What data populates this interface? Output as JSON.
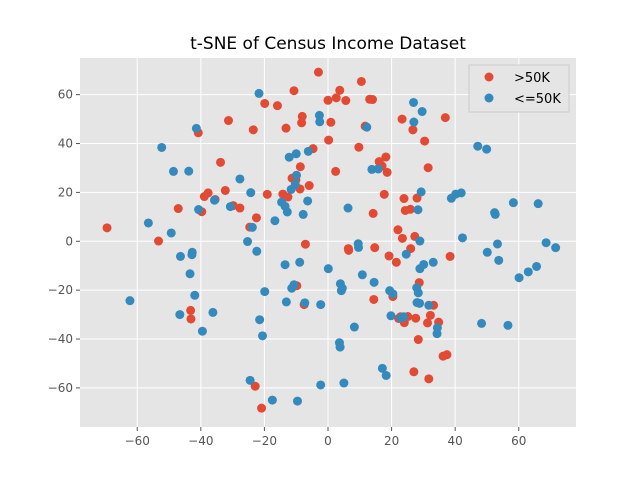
{
  "chart_data": {
    "type": "scatter",
    "title": "t-SNE of Census Income Dataset",
    "xlabel": "",
    "ylabel": "",
    "xlim": [
      -78,
      78
    ],
    "ylim": [
      -76,
      75
    ],
    "xticks": [
      -60,
      -40,
      -20,
      0,
      20,
      40,
      60
    ],
    "yticks": [
      -60,
      -40,
      -20,
      0,
      20,
      40,
      60
    ],
    "xtick_labels": [
      "−60",
      "−40",
      "−20",
      "0",
      "20",
      "40",
      "60"
    ],
    "ytick_labels": [
      "−60",
      "−40",
      "−20",
      "0",
      "20",
      "40",
      "60"
    ],
    "grid": true,
    "legend_position": "top-right",
    "series": [
      {
        "name": ">50K",
        "color": "#E24A33",
        "points": [
          [
            -69.5,
            5.5
          ],
          [
            -53.3,
            0.1
          ],
          [
            -47.1,
            13.4
          ],
          [
            -43.2,
            -28.3
          ],
          [
            -43.1,
            -31.8
          ],
          [
            -40.8,
            44.4
          ],
          [
            -39.7,
            12.1
          ],
          [
            -38.9,
            18.3
          ],
          [
            -37.7,
            19.8
          ],
          [
            -35.5,
            17.1
          ],
          [
            -33.8,
            32.3
          ],
          [
            -32.3,
            20.8
          ],
          [
            -31.3,
            49.4
          ],
          [
            -29.8,
            14.6
          ],
          [
            -27.7,
            13.6
          ],
          [
            -24.6,
            5.8
          ],
          [
            -23.5,
            45.6
          ],
          [
            -22.9,
            -59.3
          ],
          [
            -22.5,
            9.6
          ],
          [
            -20.9,
            -68.3
          ],
          [
            -19.9,
            56.4
          ],
          [
            -19.1,
            19.2
          ],
          [
            -15.9,
            55.5
          ],
          [
            -14.2,
            19.3
          ],
          [
            -13.2,
            46.3
          ],
          [
            -12.6,
            18.1
          ],
          [
            -11.3,
            25.8
          ],
          [
            -10.7,
            61.6
          ],
          [
            -10.1,
            25.1
          ],
          [
            -9.8,
            -18.2
          ],
          [
            -8.8,
            21.4
          ],
          [
            -8.7,
            30.5
          ],
          [
            -8.3,
            48.5
          ],
          [
            -8.1,
            51.1
          ],
          [
            -7.5,
            -25.9
          ],
          [
            -7.1,
            -1.2
          ],
          [
            -5.9,
            22.8
          ],
          [
            -4.7,
            37.9
          ],
          [
            -3.0,
            69.2
          ],
          [
            0.0,
            57.7
          ],
          [
            0.2,
            41.4
          ],
          [
            0.9,
            48.7
          ],
          [
            2.4,
            28.6
          ],
          [
            2.6,
            58.7
          ],
          [
            3.7,
            61.8
          ],
          [
            5.6,
            57.6
          ],
          [
            6.4,
            -3.0
          ],
          [
            6.5,
            -3.7
          ],
          [
            9.7,
            38.5
          ],
          [
            10.5,
            65.4
          ],
          [
            11.7,
            47.1
          ],
          [
            13.1,
            58.1
          ],
          [
            14.0,
            58.0
          ],
          [
            14.2,
            11.4
          ],
          [
            14.4,
            -23.8
          ],
          [
            14.7,
            -2.6
          ],
          [
            15.9,
            29.8
          ],
          [
            16.1,
            32.6
          ],
          [
            17.0,
            30.8
          ],
          [
            17.7,
            19.2
          ],
          [
            18.2,
            34.5
          ],
          [
            18.6,
            28.2
          ],
          [
            19.2,
            -6.0
          ],
          [
            20.4,
            -22.6
          ],
          [
            21.5,
            -8.6
          ],
          [
            22.0,
            4.7
          ],
          [
            22.2,
            -31.6
          ],
          [
            22.8,
            -30.9
          ],
          [
            23.3,
            50.0
          ],
          [
            23.4,
            1.2
          ],
          [
            23.9,
            17.5
          ],
          [
            24.0,
            -33.3
          ],
          [
            24.3,
            12.6
          ],
          [
            25.1,
            -30.8
          ],
          [
            25.9,
            13.1
          ],
          [
            26.0,
            -3.0
          ],
          [
            26.7,
            45.6
          ],
          [
            27.0,
            -53.4
          ],
          [
            27.3,
            2.0
          ],
          [
            27.6,
            -31.5
          ],
          [
            28.0,
            17.7
          ],
          [
            28.4,
            -40.2
          ],
          [
            28.7,
            -16.9
          ],
          [
            30.4,
            41.0
          ],
          [
            31.3,
            -33.4
          ],
          [
            31.5,
            30.1
          ],
          [
            31.7,
            -56.3
          ],
          [
            32.2,
            -30.3
          ],
          [
            33.2,
            -26.2
          ],
          [
            34.8,
            -33.1
          ],
          [
            36.2,
            -47.0
          ],
          [
            36.9,
            50.6
          ],
          [
            37.4,
            -46.4
          ],
          [
            38.4,
            -6.2
          ]
        ]
      },
      {
        "name": "<=50K",
        "color": "#348ABD",
        "points": [
          [
            -62.3,
            -24.3
          ],
          [
            -56.5,
            7.5
          ],
          [
            -52.3,
            38.4
          ],
          [
            -49.3,
            3.4
          ],
          [
            -48.6,
            28.6
          ],
          [
            -46.6,
            -30.0
          ],
          [
            -46.4,
            -6.2
          ],
          [
            -43.8,
            28.7
          ],
          [
            -43.4,
            -13.3
          ],
          [
            -42.8,
            -5.5
          ],
          [
            -42.7,
            -4.5
          ],
          [
            -41.9,
            -22.1
          ],
          [
            -41.4,
            46.2
          ],
          [
            -40.7,
            13.0
          ],
          [
            -39.5,
            -36.8
          ],
          [
            -36.2,
            -29.1
          ],
          [
            -35.7,
            16.8
          ],
          [
            -30.7,
            14.2
          ],
          [
            -27.7,
            25.5
          ],
          [
            -25.3,
            -0.1
          ],
          [
            -24.5,
            -56.9
          ],
          [
            -24.3,
            19.9
          ],
          [
            -23.8,
            5.7
          ],
          [
            -22.4,
            -4.1
          ],
          [
            -21.7,
            60.5
          ],
          [
            -21.5,
            -32.1
          ],
          [
            -20.6,
            -38.7
          ],
          [
            -19.9,
            -20.6
          ],
          [
            -17.5,
            -65.0
          ],
          [
            -16.7,
            8.4
          ],
          [
            -14.6,
            16.0
          ],
          [
            -13.5,
            -9.6
          ],
          [
            -13.5,
            14.3
          ],
          [
            -13.1,
            -24.8
          ],
          [
            -12.8,
            12.0
          ],
          [
            -12.2,
            34.4
          ],
          [
            -11.6,
            21.2
          ],
          [
            -11.4,
            -19.2
          ],
          [
            -10.7,
            -17.8
          ],
          [
            -10.3,
            23.3
          ],
          [
            -10.0,
            35.8
          ],
          [
            -9.9,
            27.0
          ],
          [
            -9.6,
            -65.4
          ],
          [
            -8.9,
            -8.6
          ],
          [
            -7.8,
            11.0
          ],
          [
            -7.3,
            -25.2
          ],
          [
            -6.4,
            16.5
          ],
          [
            -6.2,
            36.8
          ],
          [
            -2.7,
            51.5
          ],
          [
            -2.6,
            48.9
          ],
          [
            -2.3,
            -25.9
          ],
          [
            -2.3,
            -58.8
          ],
          [
            0.1,
            -11.2
          ],
          [
            3.6,
            -41.5
          ],
          [
            3.8,
            -43.3
          ],
          [
            3.9,
            -17.4
          ],
          [
            4.2,
            -20.2
          ],
          [
            4.5,
            -19.2
          ],
          [
            5.0,
            -58.0
          ],
          [
            6.3,
            13.6
          ],
          [
            8.3,
            -35.1
          ],
          [
            9.5,
            -1.0
          ],
          [
            9.6,
            -2.5
          ],
          [
            10.8,
            -13.7
          ],
          [
            12.2,
            46.7
          ],
          [
            13.8,
            29.4
          ],
          [
            14.5,
            -16.8
          ],
          [
            15.8,
            29.6
          ],
          [
            17.1,
            -52.0
          ],
          [
            18.3,
            -54.9
          ],
          [
            19.4,
            -20.2
          ],
          [
            19.8,
            -30.5
          ],
          [
            20.4,
            -21.5
          ],
          [
            22.9,
            -31.4
          ],
          [
            23.8,
            -30.9
          ],
          [
            24.6,
            -5.3
          ],
          [
            26.9,
            56.8
          ],
          [
            27.0,
            48.8
          ],
          [
            27.9,
            -19.0
          ],
          [
            28.0,
            -25.1
          ],
          [
            28.3,
            12.9
          ],
          [
            28.4,
            -21.1
          ],
          [
            28.8,
            -25.4
          ],
          [
            28.9,
            0.1
          ],
          [
            28.9,
            -11.2
          ],
          [
            29.3,
            20.2
          ],
          [
            29.6,
            53.1
          ],
          [
            30.1,
            -9.5
          ],
          [
            31.7,
            -26.2
          ],
          [
            33.1,
            -8.6
          ],
          [
            34.3,
            -37.8
          ],
          [
            34.4,
            -35.4
          ],
          [
            38.8,
            17.6
          ],
          [
            40.2,
            19.3
          ],
          [
            41.9,
            19.8
          ],
          [
            42.3,
            1.4
          ],
          [
            47.1,
            38.9
          ],
          [
            48.3,
            -33.6
          ],
          [
            49.9,
            37.7
          ],
          [
            50.1,
            -4.5
          ],
          [
            52.4,
            11.7
          ],
          [
            52.6,
            11.0
          ],
          [
            53.3,
            -1.1
          ],
          [
            53.7,
            -7.8
          ],
          [
            56.6,
            -34.4
          ],
          [
            58.3,
            15.8
          ],
          [
            60.1,
            -14.9
          ],
          [
            63.0,
            -12.5
          ],
          [
            65.6,
            -10.3
          ],
          [
            66.1,
            15.4
          ],
          [
            68.6,
            -0.6
          ],
          [
            71.6,
            -2.6
          ]
        ]
      }
    ]
  }
}
